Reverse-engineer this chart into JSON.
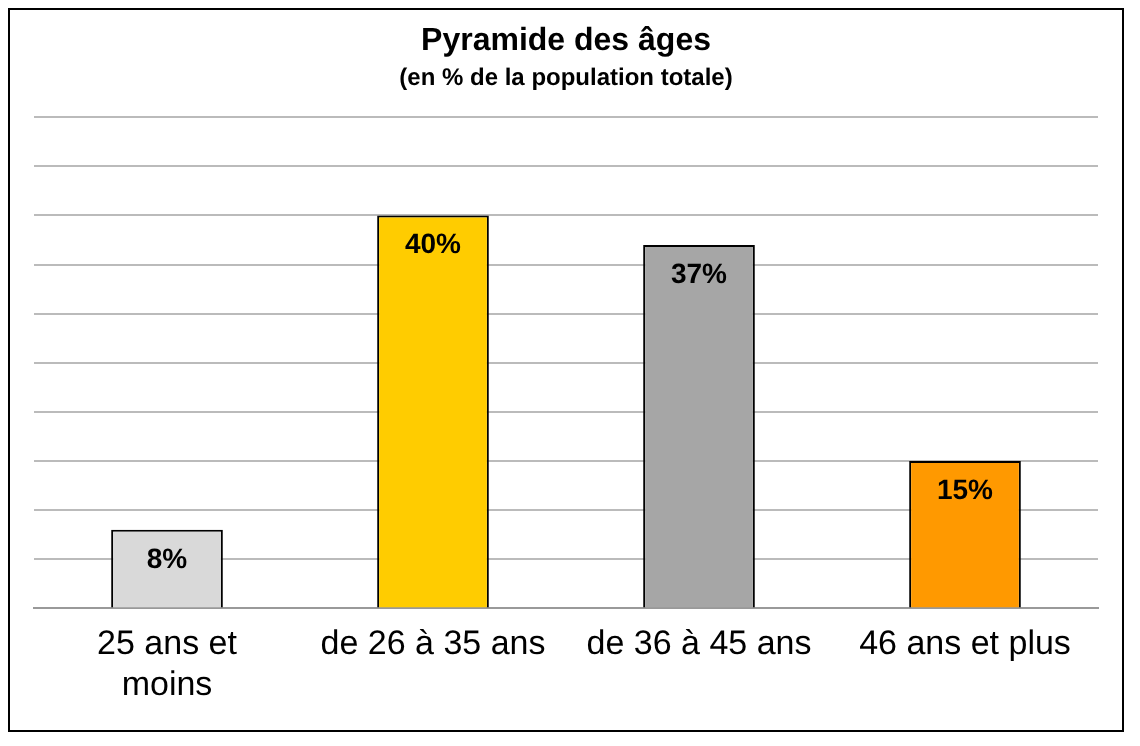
{
  "chart_data": {
    "type": "bar",
    "title": "Pyramide des âges",
    "subtitle": "(en % de la population totale)",
    "categories": [
      "25 ans et moins",
      "de 26 à 35 ans",
      "de 36 à 45 ans",
      "46 ans et plus"
    ],
    "values": [
      8,
      40,
      37,
      15
    ],
    "colors": [
      "#d9d9d9",
      "#ffcc00",
      "#a6a6a6",
      "#ff9900"
    ],
    "value_labels": [
      "8%",
      "40%",
      "37%",
      "15%"
    ],
    "ylim": [
      0,
      50
    ],
    "grid": "y",
    "legend": false,
    "tick_labels": "x"
  }
}
